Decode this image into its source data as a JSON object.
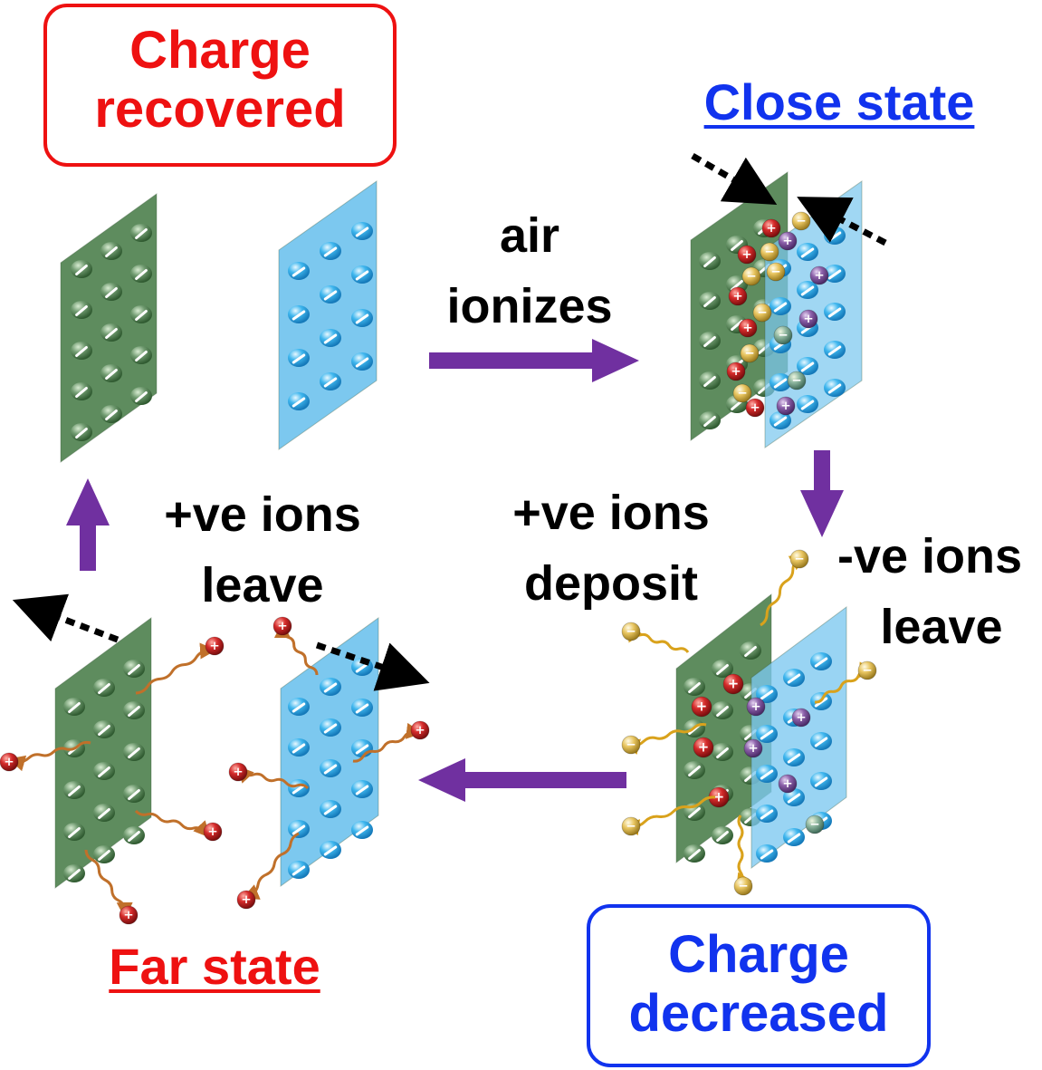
{
  "labels": {
    "charge_recovered": [
      "Charge",
      "recovered"
    ],
    "close_state": "Close state",
    "air_ionizes": [
      "air",
      "ionizes"
    ],
    "pos_ions_leave": [
      "+ve ions",
      "leave"
    ],
    "pos_ions_deposit": [
      "+ve ions",
      "deposit"
    ],
    "neg_ions_leave": [
      "-ve ions",
      "leave"
    ],
    "far_state": "Far state",
    "charge_decreased": [
      "Charge",
      "decreased"
    ]
  },
  "glyphs": {
    "plus": "+",
    "minus": "−"
  },
  "colors": {
    "red_label": "#ee1111",
    "blue_label": "#1133ee",
    "text": "#000000",
    "arrow": "#7030a0",
    "green_plate": "#5e8c5e",
    "blue_plate": "#7cc8ef",
    "positive_ion": "#d42a2a",
    "negative_ion": "#e8c560",
    "ion_trail": "#c0702a"
  }
}
